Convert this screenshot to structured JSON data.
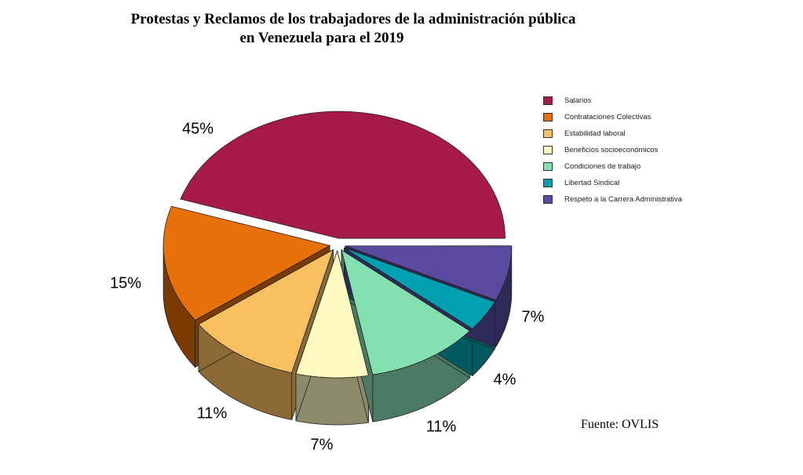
{
  "chart_data": {
    "type": "pie",
    "title": [
      "Protestas y Reclamos de los trabajadores de la administración pública",
      "en Venezuela para el 2019"
    ],
    "categories": [
      "Salarios",
      "Contrataciones Colectivas",
      "Estabilidad laboral",
      "Beneficios socioeconómicos",
      "Condiciones de trabajo",
      "Libertad Sindical",
      "Respeto a la Carrera Administrativa"
    ],
    "values": [
      45,
      15,
      11,
      7,
      11,
      4,
      7
    ],
    "labels": [
      "45%",
      "15%",
      "11%",
      "7%",
      "11%",
      "4%",
      "7%"
    ],
    "colors": [
      "#A61A4A",
      "#E8700A",
      "#F8C060",
      "#FFFBC0",
      "#84E0B0",
      "#00A0B0",
      "#5A4AA0"
    ],
    "side_colors": [
      "#6a1030",
      "#7a3a00",
      "#8b6a35",
      "#8c8a68",
      "#4a7a62",
      "#005a60",
      "#2e2a58"
    ],
    "legend_position": "right",
    "source": "Fuente: OVLIS"
  }
}
